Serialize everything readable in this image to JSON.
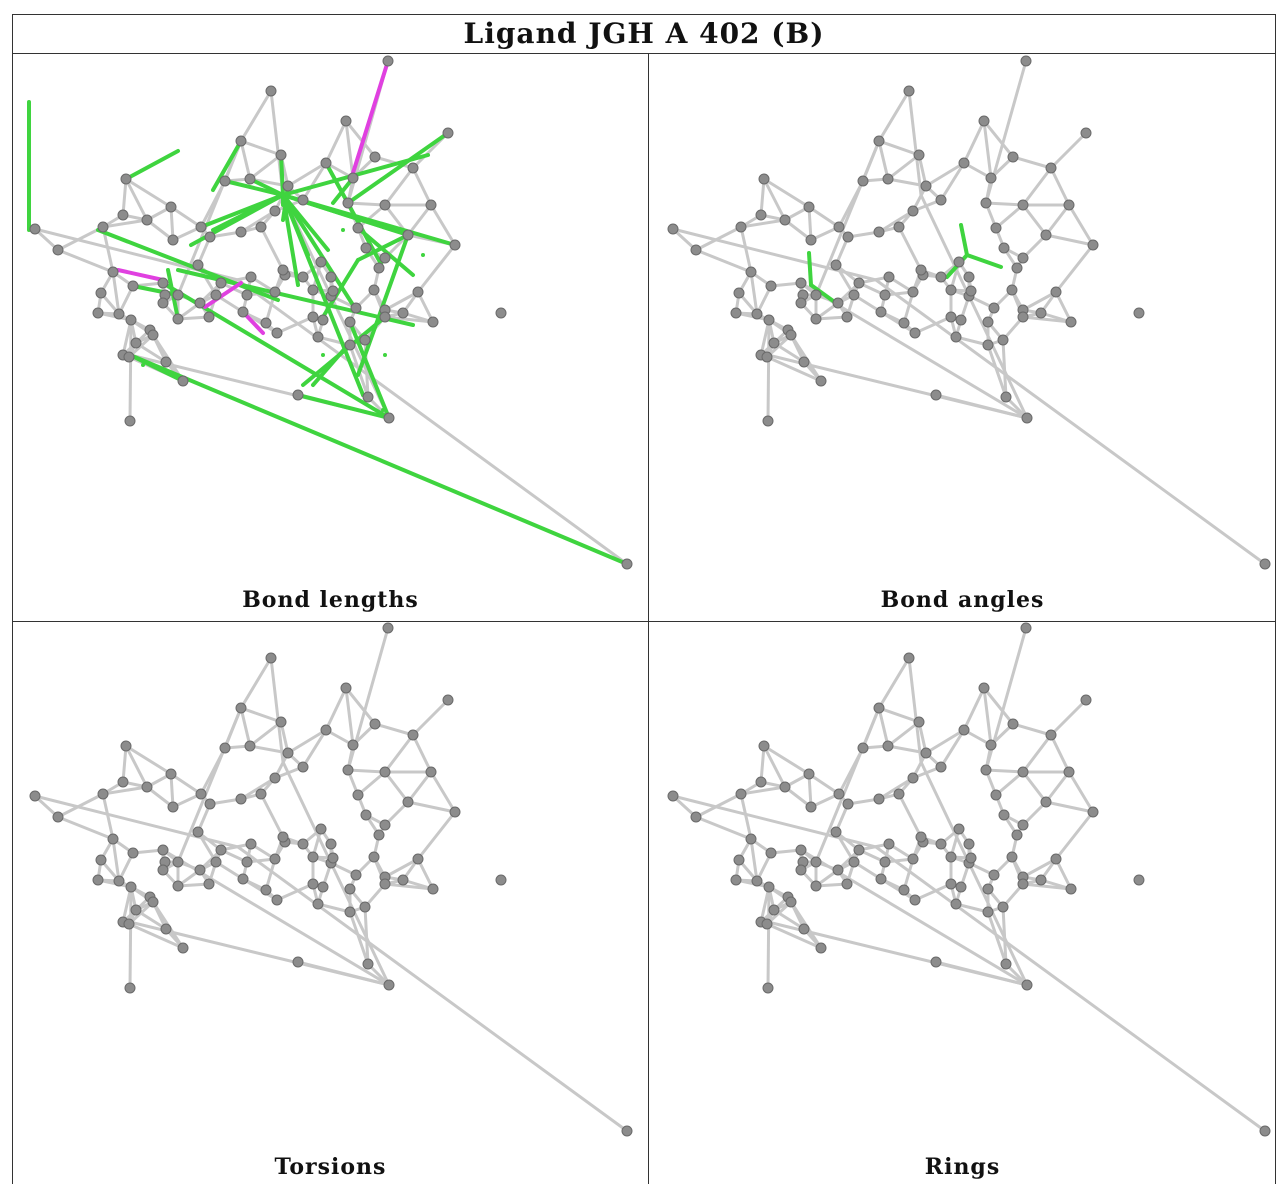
{
  "title": "Ligand JGH A 402 (B)",
  "panels": [
    {
      "id": "bond-lengths",
      "label": "Bond lengths"
    },
    {
      "id": "bond-angles",
      "label": "Bond angles"
    },
    {
      "id": "torsions",
      "label": "Torsions"
    },
    {
      "id": "rings",
      "label": "Rings"
    }
  ],
  "colors": {
    "bond_default": "#c8c8c8",
    "atom": "#8c8c8c",
    "outlier_green": "#3fd43f",
    "outlier_magenta": "#e040e0",
    "border": "#333333"
  }
}
